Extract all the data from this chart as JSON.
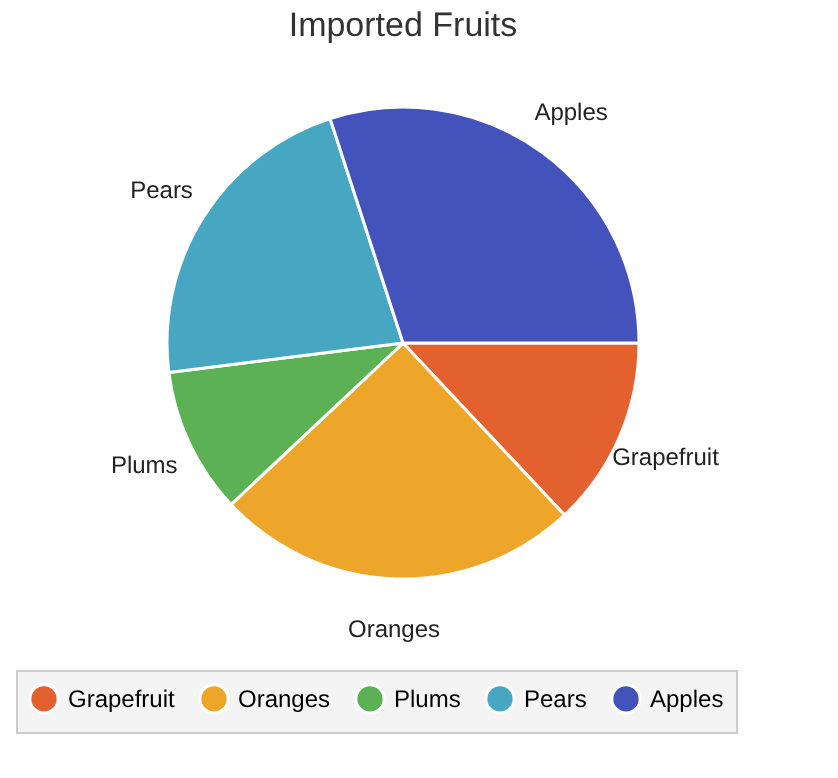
{
  "chart_data": {
    "type": "pie",
    "title": "Imported Fruits",
    "categories": [
      "Grapefruit",
      "Oranges",
      "Plums",
      "Pears",
      "Apples"
    ],
    "values": [
      13,
      25,
      10,
      22,
      30
    ],
    "colors": [
      "#e2612f",
      "#eea62a",
      "#5bb154",
      "#47a6c2",
      "#4452bb"
    ],
    "legend": "bottom"
  }
}
